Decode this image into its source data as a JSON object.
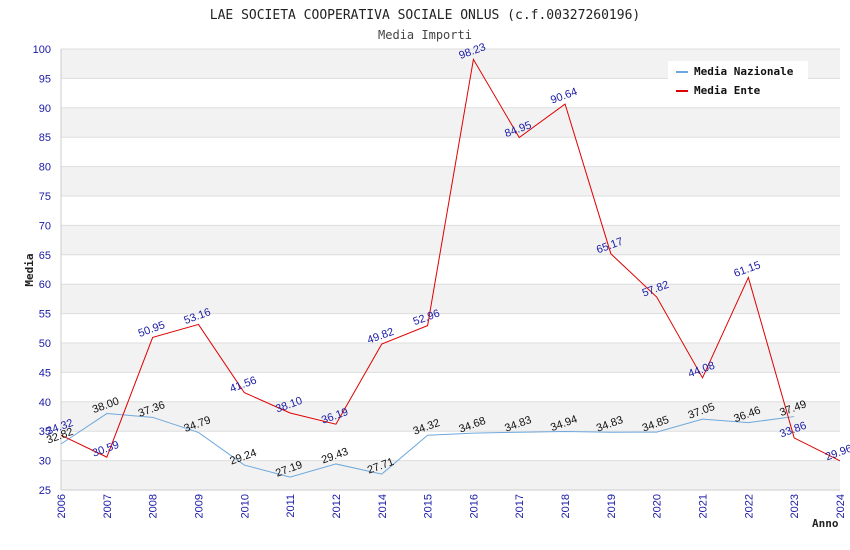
{
  "chart_data": {
    "type": "line",
    "title": "LAE SOCIETA COOPERATIVA SOCIALE ONLUS (c.f.00327260196)",
    "subtitle": "Media Importi",
    "xlabel": "Anno",
    "ylabel": "Media",
    "ylim": [
      25,
      100
    ],
    "yticks": [
      25,
      30,
      35,
      40,
      45,
      50,
      55,
      60,
      65,
      70,
      75,
      80,
      85,
      90,
      95,
      100
    ],
    "grid": true,
    "legend_position": "top-right",
    "categories": [
      "2006",
      "2007",
      "2008",
      "2009",
      "2010",
      "2011",
      "2012",
      "2014",
      "2015",
      "2016",
      "2017",
      "2018",
      "2019",
      "2020",
      "2021",
      "2022",
      "2023",
      "2024"
    ],
    "series": [
      {
        "name": "Media Nazionale",
        "color": "#6fa8dc",
        "values": [
          32.82,
          38.0,
          37.36,
          34.79,
          29.24,
          27.19,
          29.43,
          27.71,
          34.32,
          34.68,
          34.83,
          34.94,
          34.83,
          34.85,
          37.05,
          36.46,
          37.49,
          null
        ],
        "labels": [
          "32.82",
          "38.00",
          "37.36",
          "34.79",
          "29.24",
          "27.19",
          "29.43",
          "27.71",
          "34.32",
          "34.68",
          "34.83",
          "34.94",
          "34.83",
          "34.85",
          "37.05",
          "36.46",
          "37.49",
          ""
        ]
      },
      {
        "name": "Media Ente",
        "color": "#e00000",
        "values": [
          34.32,
          30.59,
          50.95,
          53.16,
          41.56,
          38.1,
          36.19,
          49.82,
          52.96,
          98.23,
          84.95,
          90.64,
          65.17,
          57.82,
          44.08,
          61.15,
          33.86,
          29.96
        ],
        "labels": [
          "34.32",
          "30.59",
          "50.95",
          "53.16",
          "41.56",
          "38.10",
          "36.19",
          "49.82",
          "52.96",
          "98.23",
          "84.95",
          "90.64",
          "65.17",
          "57.82",
          "44.08",
          "61.15",
          "33.86",
          "29.96"
        ]
      }
    ]
  }
}
